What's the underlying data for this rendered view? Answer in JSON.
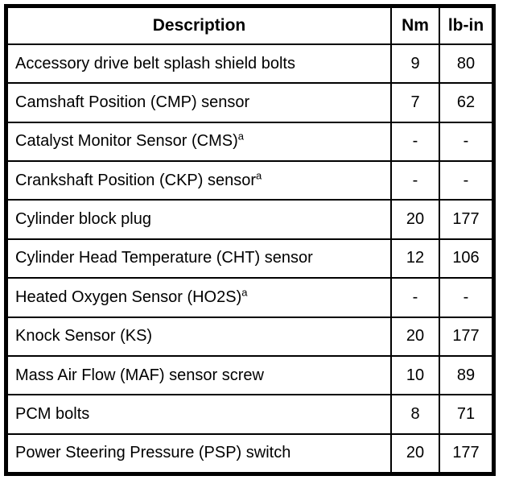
{
  "colors": {
    "border": "#000000",
    "text": "#000000",
    "background": "#ffffff"
  },
  "table": {
    "headers": {
      "description": "Description",
      "nm": "Nm",
      "lb_in": "lb-in"
    },
    "footnote_marker": "a",
    "rows": [
      {
        "description": "Accessory drive belt splash shield bolts",
        "sup": "",
        "nm": "9",
        "lb_in": "80"
      },
      {
        "description": "Camshaft Position (CMP) sensor",
        "sup": "",
        "nm": "7",
        "lb_in": "62"
      },
      {
        "description": "Catalyst Monitor Sensor (CMS)",
        "sup": "a",
        "nm": "-",
        "lb_in": "-"
      },
      {
        "description": "Crankshaft Position (CKP) sensor",
        "sup": "a",
        "nm": "-",
        "lb_in": "-"
      },
      {
        "description": "Cylinder block plug",
        "sup": "",
        "nm": "20",
        "lb_in": "177"
      },
      {
        "description": "Cylinder Head Temperature (CHT) sensor",
        "sup": "",
        "nm": "12",
        "lb_in": "106"
      },
      {
        "description": "Heated Oxygen Sensor (HO2S)",
        "sup": "a",
        "nm": "-",
        "lb_in": "-"
      },
      {
        "description": "Knock Sensor (KS)",
        "sup": "",
        "nm": "20",
        "lb_in": "177"
      },
      {
        "description": "Mass Air Flow (MAF) sensor screw",
        "sup": "",
        "nm": "10",
        "lb_in": "89"
      },
      {
        "description": "PCM bolts",
        "sup": "",
        "nm": "8",
        "lb_in": "71"
      },
      {
        "description": "Power Steering Pressure (PSP) switch",
        "sup": "",
        "nm": "20",
        "lb_in": "177"
      }
    ]
  }
}
